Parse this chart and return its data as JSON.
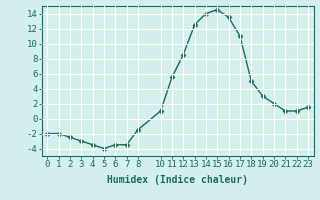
{
  "x": [
    0,
    1,
    2,
    3,
    4,
    5,
    6,
    7,
    8,
    10,
    11,
    12,
    13,
    14,
    15,
    16,
    17,
    18,
    19,
    20,
    21,
    22,
    23
  ],
  "y": [
    -2,
    -2,
    -2.5,
    -3,
    -3.5,
    -4,
    -3.5,
    -3.5,
    -1.5,
    1,
    5.5,
    8.5,
    12.5,
    14,
    14.5,
    13.5,
    11,
    5,
    3,
    2,
    1,
    1,
    1.5
  ],
  "line_color": "#1a6b5a",
  "marker": "D",
  "marker_size": 2.5,
  "background_color": "#d4f0ee",
  "grid_color": "#b8d8d8",
  "xlabel": "Humidex (Indice chaleur)",
  "xlabel_fontsize": 7,
  "tick_fontsize": 6.5,
  "ylim": [
    -5,
    15
  ],
  "yticks": [
    -4,
    -2,
    0,
    2,
    4,
    6,
    8,
    10,
    12,
    14
  ],
  "xticks": [
    0,
    1,
    2,
    3,
    4,
    5,
    6,
    7,
    8,
    10,
    11,
    12,
    13,
    14,
    15,
    16,
    17,
    18,
    19,
    20,
    21,
    22,
    23
  ]
}
